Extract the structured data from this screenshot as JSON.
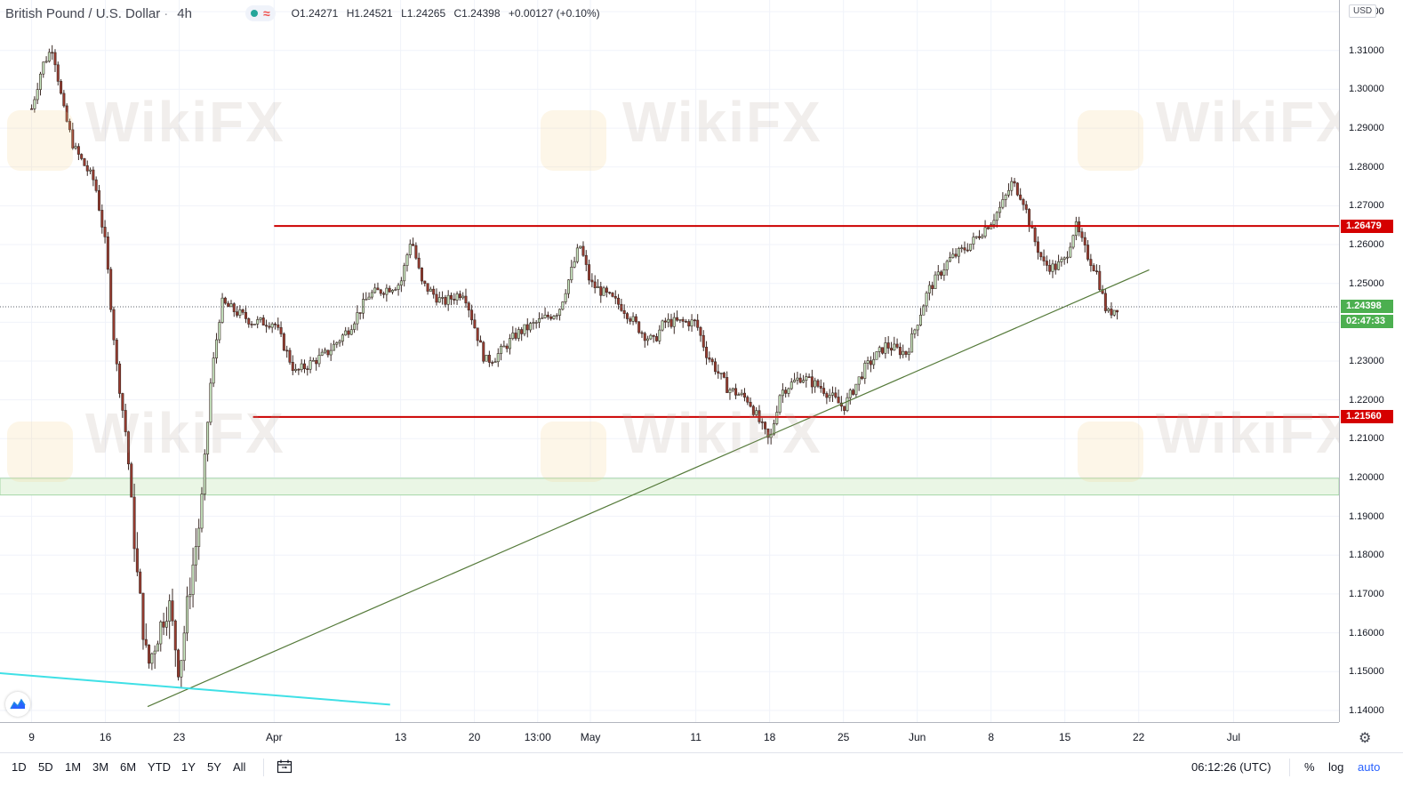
{
  "header": {
    "symbol": "British Pound / U.S. Dollar",
    "timeframe": "4h",
    "ohlc": {
      "open": "O1.24271",
      "high": "H1.24521",
      "low": "L1.24265",
      "close": "C1.24398",
      "change": "+0.00127 (+0.10%)"
    }
  },
  "price_axis": {
    "currency": "USD",
    "labels": [
      "1.32000",
      "1.31000",
      "1.30000",
      "1.29000",
      "1.28000",
      "1.27000",
      "1.26000",
      "1.25000",
      "1.24000",
      "1.23000",
      "1.22000",
      "1.21000",
      "1.20000",
      "1.19000",
      "1.18000",
      "1.17000",
      "1.16000",
      "1.15000",
      "1.14000"
    ],
    "markers": {
      "resistance": "1.26479",
      "current": "1.24398",
      "countdown": "02:47:33",
      "support": "1.21560"
    }
  },
  "time_axis": {
    "labels": [
      "9",
      "16",
      "23",
      "Apr",
      "13",
      "20",
      "13:00",
      "May",
      "11",
      "18",
      "25",
      "Jun",
      "8",
      "15",
      "22",
      "Jul"
    ]
  },
  "bottom_bar": {
    "ranges": [
      "1D",
      "5D",
      "1M",
      "3M",
      "6M",
      "YTD",
      "1Y",
      "5Y",
      "All"
    ],
    "clock": "06:12:26 (UTC)",
    "percent": "%",
    "log": "log",
    "auto": "auto"
  },
  "watermark": {
    "text": "WikiFX"
  },
  "colors": {
    "up": "#26a69a",
    "down": "#ef5350",
    "candle_up": "#c9e8c2",
    "candle_down": "#9a3b2f",
    "horizontal_line": "#cc0000",
    "trendline": "#557a3a",
    "cyan_line": "#3fe0e6",
    "zone_fill": "#eaf6e5",
    "current_price_bg": "#4caf50",
    "accent": "#2962ff"
  },
  "chart_data": {
    "type": "candlestick",
    "symbol": "GBPUSD",
    "timeframe": "4h",
    "ylim": [
      1.137,
      1.323
    ],
    "y_ticks": [
      1.14,
      1.15,
      1.16,
      1.17,
      1.18,
      1.19,
      1.2,
      1.21,
      1.22,
      1.23,
      1.24,
      1.25,
      1.26,
      1.27,
      1.28,
      1.29,
      1.3,
      1.31,
      1.32
    ],
    "horizontal_lines": [
      {
        "price": 1.26479
      },
      {
        "price": 1.2156
      }
    ],
    "zone": {
      "from": 1.1955,
      "to": 1.1998
    },
    "trendlines": [
      {
        "from": [
          "2020-03-20",
          1.141
        ],
        "to": [
          "2020-06-23",
          1.2535
        ]
      },
      {
        "from": [
          "2020-02-24",
          1.152
        ],
        "to": [
          "2020-04-12",
          1.1415
        ]
      }
    ],
    "close_path": [
      [
        "2020-03-09",
        1.295
      ],
      [
        "2020-03-10",
        1.306
      ],
      [
        "2020-03-11",
        1.311
      ],
      [
        "2020-03-12",
        1.295
      ],
      [
        "2020-03-13",
        1.285
      ],
      [
        "2020-03-15",
        1.276
      ],
      [
        "2020-03-16",
        1.26
      ],
      [
        "2020-03-17",
        1.23
      ],
      [
        "2020-03-18",
        1.21
      ],
      [
        "2020-03-19",
        1.175
      ],
      [
        "2020-03-20",
        1.151
      ],
      [
        "2020-03-21",
        1.16
      ],
      [
        "2020-03-22",
        1.168
      ],
      [
        "2020-03-23",
        1.15
      ],
      [
        "2020-03-24",
        1.172
      ],
      [
        "2020-03-25",
        1.19
      ],
      [
        "2020-03-26",
        1.225
      ],
      [
        "2020-03-27",
        1.245
      ],
      [
        "2020-03-30",
        1.24
      ],
      [
        "2020-04-01",
        1.24
      ],
      [
        "2020-04-03",
        1.227
      ],
      [
        "2020-04-06",
        1.232
      ],
      [
        "2020-04-08",
        1.238
      ],
      [
        "2020-04-10",
        1.247
      ],
      [
        "2020-04-13",
        1.25
      ],
      [
        "2020-04-14",
        1.262
      ],
      [
        "2020-04-15",
        1.25
      ],
      [
        "2020-04-17",
        1.245
      ],
      [
        "2020-04-19",
        1.248
      ],
      [
        "2020-04-21",
        1.23
      ],
      [
        "2020-04-22",
        1.231
      ],
      [
        "2020-04-24",
        1.237
      ],
      [
        "2020-04-26",
        1.24
      ],
      [
        "2020-04-28",
        1.243
      ],
      [
        "2020-04-30",
        1.26
      ],
      [
        "2020-05-01",
        1.25
      ],
      [
        "2020-05-04",
        1.244
      ],
      [
        "2020-05-06",
        1.237
      ],
      [
        "2020-05-07",
        1.235
      ],
      [
        "2020-05-08",
        1.24
      ],
      [
        "2020-05-11",
        1.24
      ],
      [
        "2020-05-12",
        1.232
      ],
      [
        "2020-05-14",
        1.223
      ],
      [
        "2020-05-16",
        1.22
      ],
      [
        "2020-05-18",
        1.209
      ],
      [
        "2020-05-19",
        1.222
      ],
      [
        "2020-05-21",
        1.226
      ],
      [
        "2020-05-23",
        1.223
      ],
      [
        "2020-05-25",
        1.218
      ],
      [
        "2020-05-27",
        1.228
      ],
      [
        "2020-05-29",
        1.234
      ],
      [
        "2020-05-31",
        1.232
      ],
      [
        "2020-06-02",
        1.248
      ],
      [
        "2020-06-04",
        1.256
      ],
      [
        "2020-06-06",
        1.26
      ],
      [
        "2020-06-08",
        1.266
      ],
      [
        "2020-06-09",
        1.27
      ],
      [
        "2020-06-10",
        1.276
      ],
      [
        "2020-06-11",
        1.272
      ],
      [
        "2020-06-12",
        1.262
      ],
      [
        "2020-06-13",
        1.255
      ],
      [
        "2020-06-14",
        1.254
      ],
      [
        "2020-06-15",
        1.256
      ],
      [
        "2020-06-16",
        1.265
      ],
      [
        "2020-06-17",
        1.258
      ],
      [
        "2020-06-18",
        1.253
      ],
      [
        "2020-06-19",
        1.242
      ],
      [
        "2020-06-20",
        1.244
      ]
    ]
  }
}
